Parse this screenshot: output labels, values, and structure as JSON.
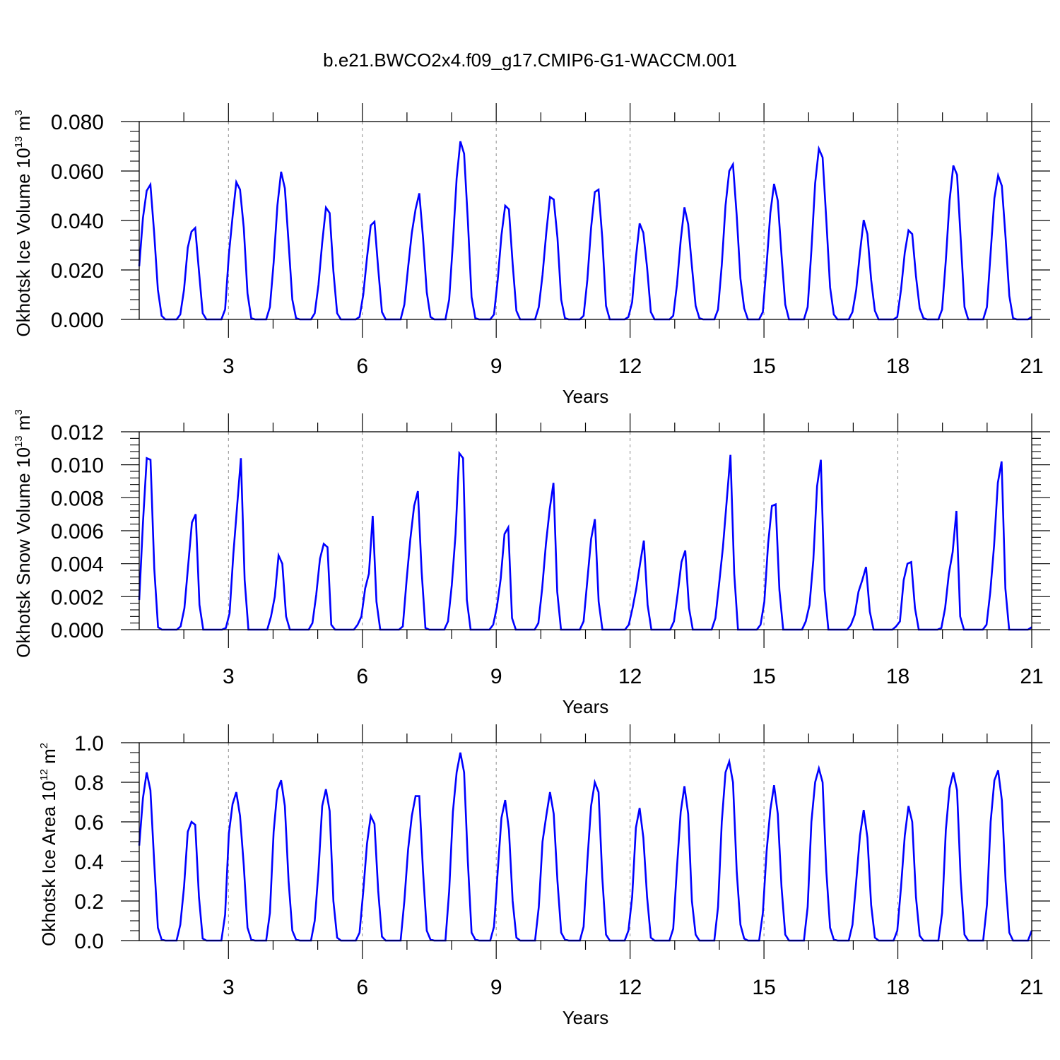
{
  "title": "b.e21.BWCO2x4.f09_g17.CMIP6-G1-WACCM.001",
  "style": {
    "line_color": "#0000ff",
    "axis_color": "#000000",
    "grid_color": "#8c8c8c",
    "background": "#ffffff"
  },
  "chart_data": [
    {
      "type": "line",
      "ylabel": {
        "prefix": "Okhotsk Ice Volume 10",
        "exponent": "13",
        "unit": " m",
        "unit_exponent": "3"
      },
      "xlabel": "Years",
      "xlim": [
        1,
        21
      ],
      "ylim": [
        0,
        0.08
      ],
      "xticks": [
        "3",
        "6",
        "9",
        "12",
        "15",
        "18",
        "21"
      ],
      "yticks": [
        "0.000",
        "0.020",
        "0.040",
        "0.060",
        "0.080"
      ],
      "grid": "vertical dashed at major x ticks",
      "peaks": [
        0.0545,
        0.037,
        0.0555,
        0.0597,
        0.0452,
        0.0395,
        0.051,
        0.072,
        0.046,
        0.0495,
        0.0525,
        0.0388,
        0.0453,
        0.0627,
        0.0548,
        0.069,
        0.0402,
        0.036,
        0.0622,
        0.0582
      ],
      "series": [
        {
          "values": [
            0.0215,
            0.041,
            0.052,
            0.0545,
            0.035,
            0.012,
            0.0015,
            0,
            0,
            0,
            0,
            0.002,
            0.012,
            0.029,
            0.0355,
            0.037,
            0.0195,
            0.0025,
            0,
            0,
            0,
            0,
            0,
            0.004,
            0.026,
            0.0415,
            0.0555,
            0.0525,
            0.037,
            0.0105,
            0.0005,
            0,
            0,
            0,
            0,
            0.005,
            0.023,
            0.046,
            0.0597,
            0.053,
            0.031,
            0.008,
            0.0005,
            0,
            0,
            0,
            0,
            0.0025,
            0.014,
            0.031,
            0.0452,
            0.043,
            0.0195,
            0.0025,
            0,
            0,
            0,
            0,
            0,
            0.001,
            0.01,
            0.025,
            0.038,
            0.0395,
            0.0205,
            0.003,
            0,
            0,
            0,
            0,
            0,
            0.006,
            0.021,
            0.035,
            0.0445,
            0.051,
            0.033,
            0.011,
            0.001,
            0,
            0,
            0,
            0,
            0.008,
            0.031,
            0.057,
            0.072,
            0.067,
            0.04,
            0.009,
            0.0005,
            0,
            0,
            0,
            0,
            0.002,
            0.016,
            0.034,
            0.046,
            0.0445,
            0.0225,
            0.0035,
            0,
            0,
            0,
            0,
            0,
            0.005,
            0.018,
            0.035,
            0.0495,
            0.0485,
            0.033,
            0.008,
            0.0005,
            0,
            0,
            0,
            0,
            0.0015,
            0.016,
            0.037,
            0.0515,
            0.0525,
            0.033,
            0.0055,
            0,
            0,
            0,
            0,
            0,
            0.001,
            0.007,
            0.025,
            0.0388,
            0.035,
            0.021,
            0.003,
            0,
            0,
            0,
            0,
            0,
            0.0015,
            0.014,
            0.032,
            0.0453,
            0.0385,
            0.0215,
            0.0055,
            0.0005,
            0,
            0,
            0,
            0,
            0.004,
            0.022,
            0.046,
            0.06,
            0.0627,
            0.042,
            0.0165,
            0.0045,
            0,
            0,
            0,
            0,
            0.003,
            0.022,
            0.043,
            0.0548,
            0.048,
            0.026,
            0.006,
            0,
            0,
            0,
            0,
            0,
            0.005,
            0.028,
            0.055,
            0.069,
            0.0655,
            0.04,
            0.013,
            0.002,
            0,
            0,
            0,
            0,
            0.003,
            0.012,
            0.027,
            0.0402,
            0.0345,
            0.016,
            0.0035,
            0,
            0,
            0,
            0,
            0,
            0.001,
            0.012,
            0.027,
            0.036,
            0.0345,
            0.0175,
            0.0045,
            0.0005,
            0,
            0,
            0,
            0,
            0.004,
            0.024,
            0.048,
            0.0622,
            0.0585,
            0.032,
            0.005,
            0,
            0,
            0,
            0,
            0,
            0.005,
            0.027,
            0.049,
            0.0582,
            0.054,
            0.033,
            0.0095,
            0.0005,
            0,
            0,
            0,
            0,
            0.001
          ]
        }
      ]
    },
    {
      "type": "line",
      "ylabel": {
        "prefix": "Okhotsk Snow Volume 10",
        "exponent": "13",
        "unit": " m",
        "unit_exponent": "3"
      },
      "xlabel": "Years",
      "xlim": [
        1,
        21
      ],
      "ylim": [
        0,
        0.012
      ],
      "xticks": [
        "3",
        "6",
        "9",
        "12",
        "15",
        "18",
        "21"
      ],
      "yticks": [
        "0.000",
        "0.002",
        "0.004",
        "0.006",
        "0.008",
        "0.010",
        "0.012"
      ],
      "grid": "vertical dashed at major x ticks",
      "series": [
        {
          "values": [
            0.0018,
            0.0065,
            0.0104,
            0.0103,
            0.0037,
            0.00015,
            0,
            0,
            0,
            0,
            0,
            0.0002,
            0.0013,
            0.0039,
            0.0065,
            0.007,
            0.0015,
            0,
            0,
            0,
            0,
            0,
            0,
            0.0001,
            0.001,
            0.0046,
            0.0075,
            0.0104,
            0.003,
            0,
            0,
            0,
            0,
            0,
            0,
            0.0008,
            0.002,
            0.0045,
            0.004,
            0.0008,
            0,
            0,
            0,
            0,
            0,
            0,
            0.0004,
            0.0021,
            0.0043,
            0.0052,
            0.005,
            0.0003,
            0,
            0,
            0,
            0,
            0,
            0,
            0.0003,
            0.0008,
            0.0025,
            0.0034,
            0.0069,
            0.0017,
            0,
            0,
            0,
            0,
            0,
            0,
            0.0002,
            0.003,
            0.0055,
            0.0075,
            0.0084,
            0.0035,
            0.0001,
            0,
            0,
            0,
            0,
            0,
            0.0005,
            0.0027,
            0.0058,
            0.0107,
            0.0104,
            0.0018,
            0,
            0,
            0,
            0,
            0,
            0,
            0.0003,
            0.0014,
            0.0031,
            0.0058,
            0.0062,
            0.0007,
            0,
            0,
            0,
            0,
            0,
            0,
            0.0004,
            0.0025,
            0.0052,
            0.0073,
            0.0089,
            0.0023,
            0,
            0,
            0,
            0,
            0,
            0,
            0.0005,
            0.003,
            0.0055,
            0.0067,
            0.0017,
            0,
            0,
            0,
            0,
            0,
            0,
            0,
            0.0003,
            0.0013,
            0.0025,
            0.004,
            0.0054,
            0.0015,
            0,
            0,
            0,
            0,
            0,
            0,
            0.0005,
            0.0022,
            0.0041,
            0.0048,
            0.0013,
            0,
            0,
            0,
            0,
            0,
            0,
            0.0007,
            0.0028,
            0.005,
            0.0078,
            0.0106,
            0.0034,
            0,
            0,
            0,
            0,
            0,
            0,
            0.0003,
            0.0017,
            0.0052,
            0.0075,
            0.0076,
            0.0024,
            0,
            0,
            0,
            0,
            0,
            0,
            0.0005,
            0.0015,
            0.0042,
            0.0087,
            0.0103,
            0.0024,
            0,
            0,
            0,
            0,
            0,
            0,
            0.0003,
            0.0009,
            0.0023,
            0.003,
            0.0038,
            0.0011,
            0,
            0,
            0,
            0,
            0,
            0,
            0.0002,
            0.0005,
            0.003,
            0.004,
            0.0041,
            0.0013,
            0,
            0,
            0,
            0,
            0,
            0,
            0.0001,
            0.0013,
            0.0034,
            0.0047,
            0.0072,
            0.0008,
            0,
            0,
            0,
            0,
            0,
            0,
            0.0003,
            0.0023,
            0.0051,
            0.0089,
            0.0102,
            0.0025,
            0,
            0,
            0,
            0,
            0,
            0,
            0.00015
          ]
        }
      ]
    },
    {
      "type": "line",
      "ylabel": {
        "prefix": "Okhotsk Ice Area 10",
        "exponent": "12",
        "unit": " m",
        "unit_exponent": "2"
      },
      "xlabel": "Years",
      "xlim": [
        1,
        21
      ],
      "ylim": [
        0,
        1.0
      ],
      "xticks": [
        "3",
        "6",
        "9",
        "12",
        "15",
        "18",
        "21"
      ],
      "yticks": [
        "0.0",
        "0.2",
        "0.4",
        "0.6",
        "0.8",
        "1.0"
      ],
      "grid": "vertical dashed at major x ticks",
      "series": [
        {
          "values": [
            0.48,
            0.72,
            0.85,
            0.76,
            0.4,
            0.065,
            0.005,
            0,
            0,
            0,
            0,
            0.08,
            0.27,
            0.55,
            0.6,
            0.585,
            0.22,
            0.01,
            0,
            0,
            0,
            0,
            0,
            0.13,
            0.54,
            0.69,
            0.75,
            0.63,
            0.38,
            0.065,
            0.005,
            0,
            0,
            0,
            0,
            0.14,
            0.55,
            0.76,
            0.81,
            0.68,
            0.3,
            0.05,
            0.005,
            0,
            0,
            0,
            0,
            0.1,
            0.35,
            0.68,
            0.765,
            0.655,
            0.2,
            0.015,
            0,
            0,
            0,
            0,
            0,
            0.04,
            0.25,
            0.49,
            0.63,
            0.59,
            0.25,
            0.02,
            0,
            0,
            0,
            0,
            0,
            0.2,
            0.46,
            0.63,
            0.73,
            0.73,
            0.35,
            0.05,
            0.005,
            0,
            0,
            0,
            0,
            0.25,
            0.65,
            0.85,
            0.95,
            0.85,
            0.4,
            0.04,
            0.005,
            0,
            0,
            0,
            0,
            0.07,
            0.35,
            0.62,
            0.71,
            0.56,
            0.2,
            0.015,
            0,
            0,
            0,
            0,
            0,
            0.17,
            0.5,
            0.63,
            0.75,
            0.64,
            0.3,
            0.04,
            0.005,
            0,
            0,
            0,
            0,
            0.07,
            0.4,
            0.68,
            0.8,
            0.75,
            0.32,
            0.03,
            0,
            0,
            0,
            0,
            0,
            0.05,
            0.22,
            0.57,
            0.67,
            0.52,
            0.22,
            0.015,
            0,
            0,
            0,
            0,
            0,
            0.06,
            0.37,
            0.65,
            0.78,
            0.64,
            0.2,
            0.03,
            0,
            0,
            0,
            0,
            0,
            0.17,
            0.6,
            0.85,
            0.905,
            0.8,
            0.35,
            0.08,
            0.01,
            0,
            0,
            0,
            0,
            0.14,
            0.45,
            0.66,
            0.785,
            0.64,
            0.27,
            0.03,
            0,
            0,
            0,
            0,
            0,
            0.17,
            0.6,
            0.8,
            0.87,
            0.8,
            0.35,
            0.065,
            0.005,
            0,
            0,
            0,
            0,
            0.08,
            0.3,
            0.53,
            0.66,
            0.52,
            0.18,
            0.015,
            0,
            0,
            0,
            0,
            0,
            0.05,
            0.27,
            0.53,
            0.68,
            0.6,
            0.22,
            0.025,
            0,
            0,
            0,
            0,
            0,
            0.14,
            0.56,
            0.77,
            0.85,
            0.76,
            0.3,
            0.03,
            0,
            0,
            0,
            0,
            0,
            0.18,
            0.6,
            0.81,
            0.86,
            0.71,
            0.3,
            0.04,
            0,
            0,
            0,
            0,
            0,
            0.05
          ]
        }
      ]
    }
  ]
}
